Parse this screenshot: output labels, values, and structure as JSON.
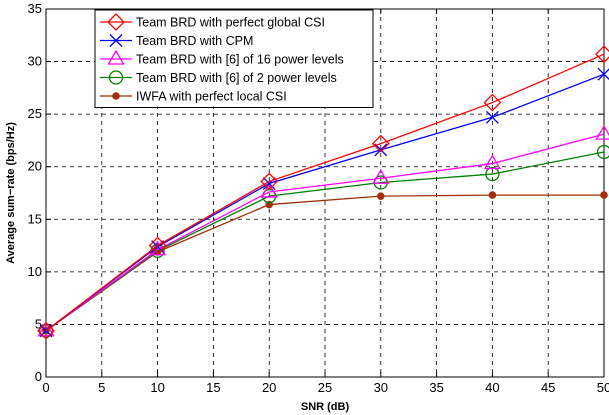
{
  "chart_data": {
    "type": "line",
    "title": "",
    "xlabel": "SNR (dB)",
    "ylabel": "Average sum−rate (bps/Hz)",
    "xlim": [
      0,
      50
    ],
    "ylim": [
      0,
      35
    ],
    "xticks": [
      0,
      5,
      10,
      15,
      20,
      25,
      30,
      35,
      40,
      45,
      50
    ],
    "yticks": [
      0,
      5,
      10,
      15,
      20,
      25,
      30,
      35
    ],
    "grid": true,
    "legend_position": "top-left",
    "series": [
      {
        "name": "Team BRD with perfect global CSI",
        "color": "#ff0000",
        "marker": "diamond",
        "x": [
          0,
          10,
          20,
          30,
          40,
          50
        ],
        "y": [
          4.4,
          12.5,
          18.6,
          22.2,
          26.1,
          30.7
        ]
      },
      {
        "name": "Team BRD with CPM",
        "color": "#0000ff",
        "marker": "x",
        "x": [
          0,
          10,
          20,
          30,
          40,
          50
        ],
        "y": [
          4.4,
          12.4,
          18.4,
          21.6,
          24.7,
          28.8
        ]
      },
      {
        "name": "Team BRD with [6] of 16 power levels",
        "color": "#ff00ff",
        "marker": "triangle",
        "x": [
          0,
          10,
          20,
          30,
          40,
          50
        ],
        "y": [
          4.4,
          12.1,
          17.6,
          18.9,
          20.3,
          23.1
        ]
      },
      {
        "name": "Team BRD with [6] of 2 power levels",
        "color": "#008000",
        "marker": "circle",
        "x": [
          0,
          10,
          20,
          30,
          40,
          50
        ],
        "y": [
          4.4,
          12.0,
          17.2,
          18.5,
          19.3,
          21.4
        ]
      },
      {
        "name": "IWFA with perfect local CSI",
        "color": "#a0300a",
        "marker": "dot",
        "x": [
          0,
          10,
          20,
          30,
          40,
          50
        ],
        "y": [
          4.4,
          11.9,
          16.4,
          17.2,
          17.3,
          17.3
        ]
      }
    ]
  }
}
